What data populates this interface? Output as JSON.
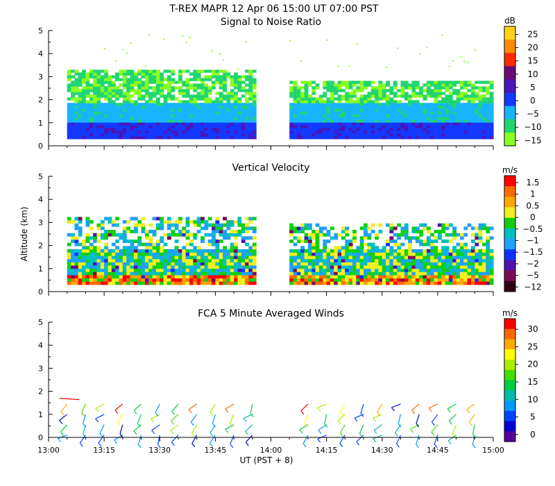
{
  "figure": {
    "title": "T-REX  MAPR 12 Apr 06  15:00 UT  07:00  PST",
    "ylabel_shared": "Altitude (km)",
    "xlabel": "UT  (PST + 8)",
    "x_ticks": [
      "13:00",
      "13:15",
      "13:30",
      "13:45",
      "14:00",
      "14:15",
      "14:30",
      "14:45",
      "15:00"
    ],
    "y_ticks": [
      "0",
      "1",
      "2",
      "3",
      "4",
      "5"
    ]
  },
  "chart_data": [
    {
      "type": "heatmap",
      "title": "Signal to Noise Ratio",
      "x_range": [
        "13:00",
        "15:00"
      ],
      "ylim": [
        0,
        5
      ],
      "colorbar": {
        "unit": "dB",
        "levels": [
          "25",
          "20",
          "15",
          "10",
          "5",
          "0",
          "−5",
          "−10",
          "−15"
        ],
        "colors": [
          "#ffd21a",
          "#ff8c00",
          "#ff2a00",
          "#6a0b74",
          "#4a16b8",
          "#1438ff",
          "#18b4ff",
          "#21d670",
          "#8aff20"
        ]
      },
      "data_gaps": [
        [
          "13:56",
          "14:05"
        ]
      ],
      "layers": [
        {
          "altitude_km": [
            0.3,
            1.0
          ],
          "approx_db": 5,
          "color": "#1438ff"
        },
        {
          "altitude_km": [
            1.0,
            1.8
          ],
          "approx_db": -5,
          "color": "#18b4ff"
        },
        {
          "altitude_km": [
            1.8,
            3.3
          ],
          "approx_db": -12,
          "color": "#21d670"
        },
        {
          "altitude_km": [
            3.3,
            5.0
          ],
          "approx_db": -15,
          "color": "#8aff20"
        }
      ]
    },
    {
      "type": "heatmap",
      "title": "Vertical Velocity",
      "x_range": [
        "13:00",
        "15:00"
      ],
      "ylim": [
        0,
        5
      ],
      "colorbar": {
        "unit": "m/s",
        "levels": [
          "1.5",
          "1",
          "0.5",
          "0",
          "−0.5",
          "−1",
          "−1.5",
          "−2",
          "−5",
          "−12"
        ],
        "colors": [
          "#ff0000",
          "#ff6a00",
          "#ffa500",
          "#f0f020",
          "#10d010",
          "#00c0c0",
          "#20a0ff",
          "#1030ff",
          "#5010b0",
          "#7a0a55",
          "#300010"
        ]
      },
      "data_gaps": [
        [
          "13:56",
          "14:05"
        ]
      ]
    },
    {
      "type": "scatter",
      "title": "FCA 5 Minute Averaged Winds",
      "x_range": [
        "13:00",
        "15:00"
      ],
      "ylim": [
        0,
        5
      ],
      "colorbar": {
        "unit": "m/s",
        "levels": [
          "30",
          "25",
          "20",
          "15",
          "10",
          "5",
          "0"
        ],
        "colors": [
          "#ff0000",
          "#ff6600",
          "#ffaa00",
          "#ffff00",
          "#aaee00",
          "#44dd00",
          "#00cc44",
          "#00bbaa",
          "#0099ff",
          "#0044ff",
          "#0000cc",
          "#550099"
        ]
      },
      "wind_times": [
        "13:05",
        "13:10",
        "13:15",
        "13:20",
        "13:25",
        "13:30",
        "13:35",
        "13:40",
        "13:45",
        "13:50",
        "13:55",
        "14:10",
        "14:15",
        "14:20",
        "14:25",
        "14:30",
        "14:35",
        "14:40",
        "14:45",
        "14:50",
        "14:55"
      ],
      "wind_altitudes_km": [
        0.1,
        0.55,
        1.0,
        1.45
      ],
      "wind_speed_range_ms": [
        3,
        25
      ]
    }
  ]
}
